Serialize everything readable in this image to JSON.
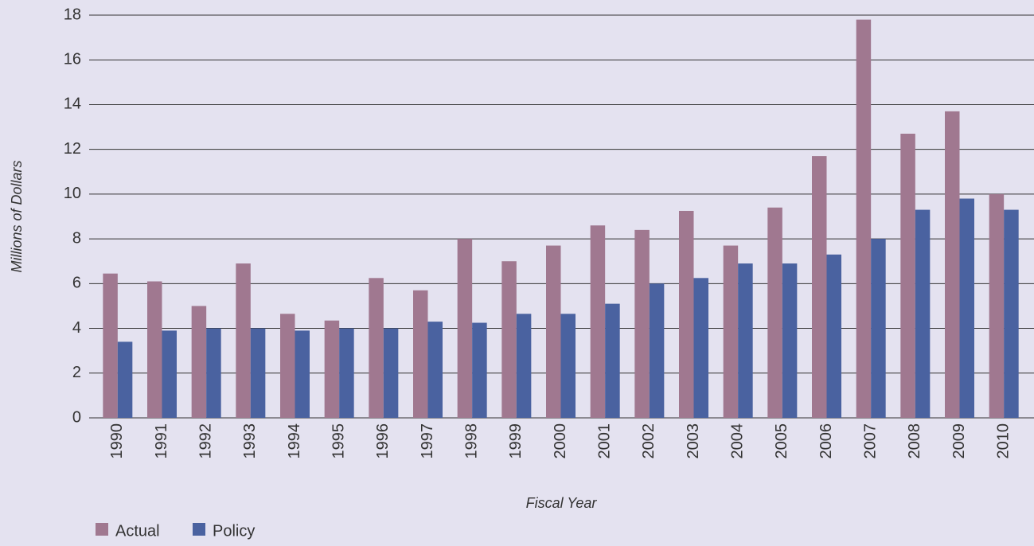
{
  "chart_data": {
    "type": "bar",
    "x_label": "Fiscal Year",
    "y_label": "Millions of Dollars",
    "categories": [
      "1990",
      "1991",
      "1992",
      "1993",
      "1994",
      "1995",
      "1996",
      "1997",
      "1998",
      "1999",
      "2000",
      "2001",
      "2002",
      "2003",
      "2004",
      "2005",
      "2006",
      "2007",
      "2008",
      "2009",
      "2010"
    ],
    "series": [
      {
        "name": "Actual",
        "color": "#a07890",
        "values": [
          6.45,
          6.1,
          5.0,
          6.9,
          4.65,
          4.35,
          6.25,
          5.7,
          8.0,
          7.0,
          7.7,
          8.6,
          8.4,
          9.25,
          7.7,
          9.4,
          11.7,
          17.8,
          12.7,
          13.7,
          10.0
        ]
      },
      {
        "name": "Policy",
        "color": "#4a62a0",
        "values": [
          3.4,
          3.9,
          4.0,
          4.0,
          3.9,
          4.0,
          4.0,
          4.3,
          4.25,
          4.65,
          4.65,
          5.1,
          6.0,
          6.25,
          6.9,
          6.9,
          7.3,
          8.0,
          9.3,
          9.8,
          9.3
        ]
      }
    ],
    "ylim": [
      0,
      18
    ],
    "yticks": [
      0,
      2,
      4,
      6,
      8,
      10,
      12,
      14,
      16,
      18
    ],
    "grid": true,
    "legend": "bottom-left"
  }
}
